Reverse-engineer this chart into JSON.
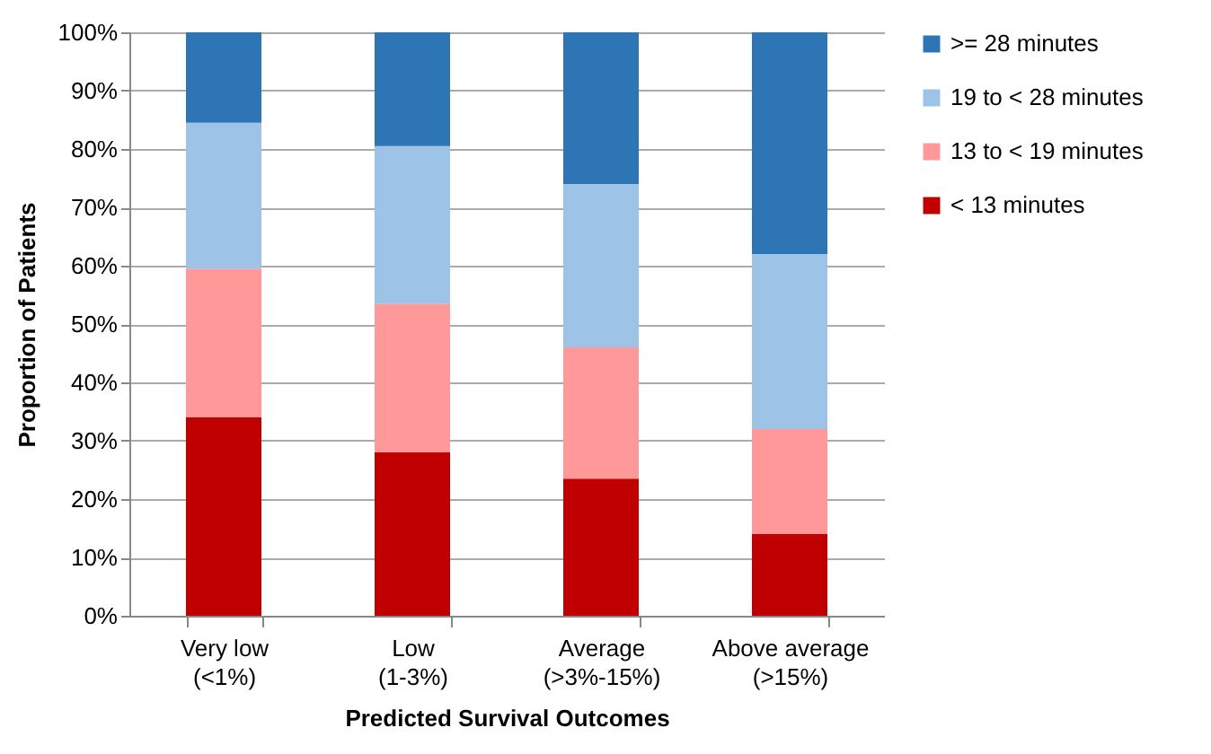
{
  "chart_data": {
    "type": "bar",
    "stacked": true,
    "xlabel": "Predicted Survival Outcomes",
    "ylabel": "Proportion of Patients",
    "categories": [
      "Very low\n(<1%)",
      "Low\n(1-3%)",
      "Average\n(>3%-15%)",
      "Above average\n(>15%)"
    ],
    "series": [
      {
        "name": "< 13 minutes",
        "color": "#c00000",
        "values": [
          34,
          28,
          23.5,
          14
        ]
      },
      {
        "name": "13 to < 19 minutes",
        "color": "#ff9999",
        "values": [
          25.5,
          25.5,
          22.5,
          18
        ]
      },
      {
        "name": "19 to < 28 minutes",
        "color": "#9dc3e6",
        "values": [
          25,
          27,
          28,
          30
        ]
      },
      {
        "name": ">= 28 minutes",
        "color": "#2e75b6",
        "values": [
          15.5,
          19.5,
          26,
          38
        ]
      }
    ],
    "ylim": [
      0,
      100
    ],
    "yticks": [
      {
        "value": 0,
        "label": "0%"
      },
      {
        "value": 10,
        "label": "10%"
      },
      {
        "value": 20,
        "label": "20%"
      },
      {
        "value": 30,
        "label": "30%"
      },
      {
        "value": 40,
        "label": "40%"
      },
      {
        "value": 50,
        "label": "50%"
      },
      {
        "value": 60,
        "label": "60%"
      },
      {
        "value": 70,
        "label": "70%"
      },
      {
        "value": 80,
        "label": "80%"
      },
      {
        "value": 90,
        "label": "90%"
      },
      {
        "value": 100,
        "label": "100%"
      }
    ],
    "grid": "y",
    "legend": "right"
  }
}
